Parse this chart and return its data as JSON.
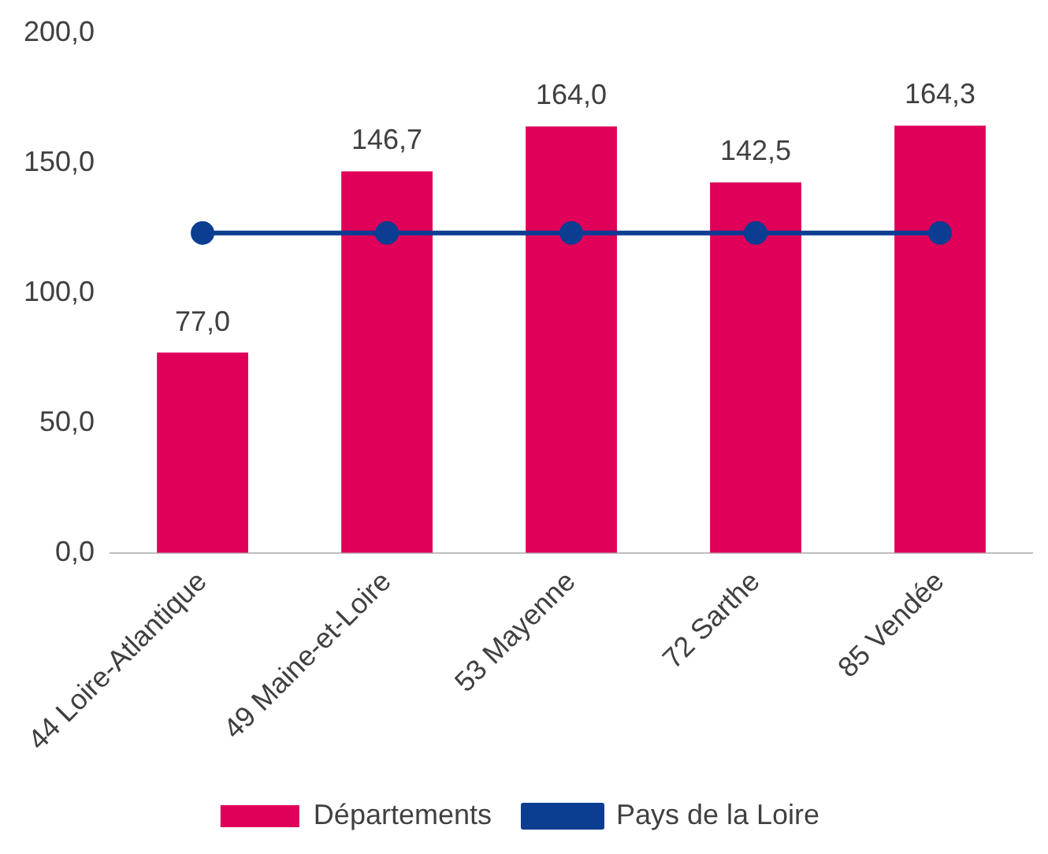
{
  "chart_data": {
    "type": "bar",
    "categories": [
      "44 Loire-Atlantique",
      "49 Maine-et-Loire",
      "53 Mayenne",
      "72 Sarthe",
      "85 Vendée"
    ],
    "series": [
      {
        "name": "Départements",
        "color": "#e0005a",
        "values": [
          77.0,
          146.7,
          164.0,
          142.5,
          164.3
        ],
        "value_labels": [
          "77,0",
          "146,7",
          "164,0",
          "142,5",
          "164,3"
        ]
      },
      {
        "name": "Pays de la Loire",
        "type": "line",
        "color": "#0b3d91",
        "values": [
          123,
          123,
          123,
          123,
          123
        ]
      }
    ],
    "ylim": [
      0,
      200
    ],
    "yticks": [
      {
        "value": 0,
        "label": "0,0"
      },
      {
        "value": 50,
        "label": "50,0"
      },
      {
        "value": 100,
        "label": "100,0"
      },
      {
        "value": 150,
        "label": "150,0"
      },
      {
        "value": 200,
        "label": "200,0"
      }
    ],
    "grid": false,
    "legend": "bottom",
    "marker": "circle",
    "line_style": "solid"
  }
}
